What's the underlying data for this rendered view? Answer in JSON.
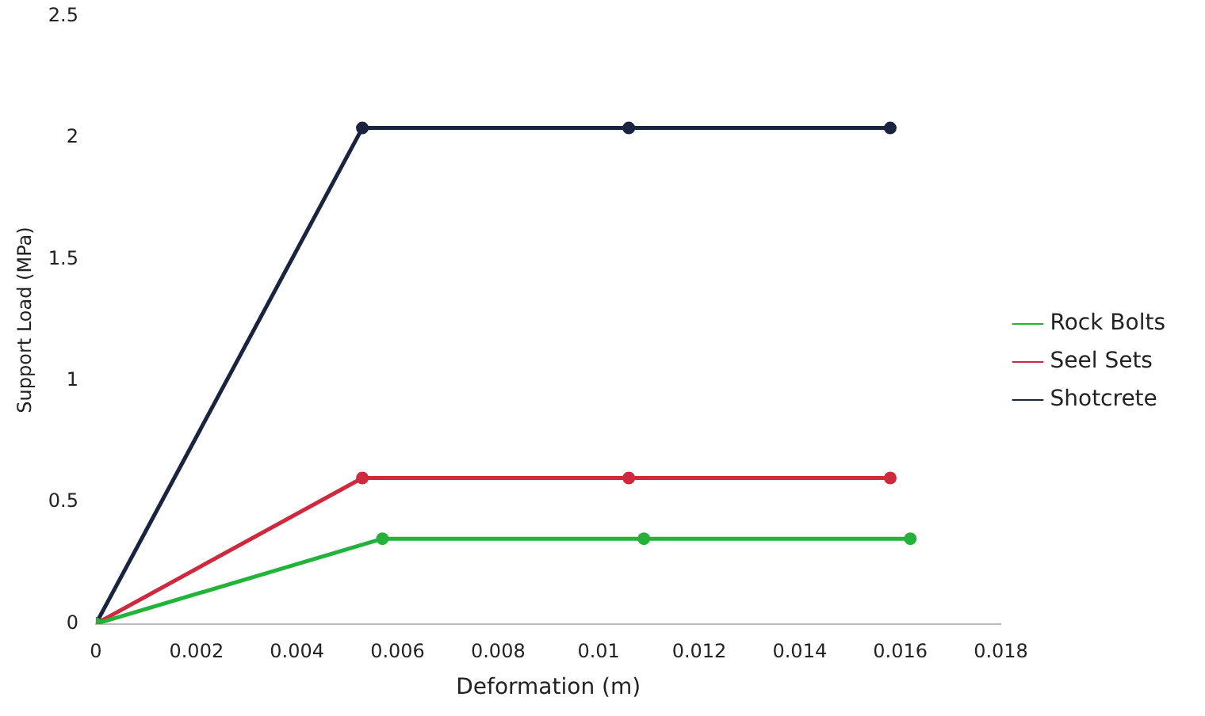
{
  "chart_data": {
    "type": "line",
    "xlabel": "Deformation (m)",
    "ylabel": "Support Load (MPa)",
    "xlim": [
      0,
      0.018
    ],
    "xticks": [
      0,
      0.002,
      0.004,
      0.006,
      0.008,
      0.01,
      0.012,
      0.014,
      0.016,
      0.018
    ],
    "ylim": [
      0,
      2.5
    ],
    "yticks": [
      0,
      0.5,
      1,
      1.5,
      2,
      2.5
    ],
    "grid": false,
    "legend": "right",
    "marker": "circle",
    "line_style": "solid",
    "series": [
      {
        "name": "Rock Bolts",
        "color": "#22b33a",
        "x": [
          0,
          0.0057,
          0.0109,
          0.0162
        ],
        "values": [
          0,
          0.35,
          0.35,
          0.35
        ]
      },
      {
        "name": "Seel Sets",
        "color": "#d0283c",
        "x": [
          0,
          0.0053,
          0.0106,
          0.0158
        ],
        "values": [
          0,
          0.6,
          0.6,
          0.6
        ]
      },
      {
        "name": "Shotcrete",
        "color": "#1a2440",
        "x": [
          0,
          0.0053,
          0.0106,
          0.0158
        ],
        "values": [
          0,
          2.04,
          2.04,
          2.04
        ]
      }
    ]
  }
}
